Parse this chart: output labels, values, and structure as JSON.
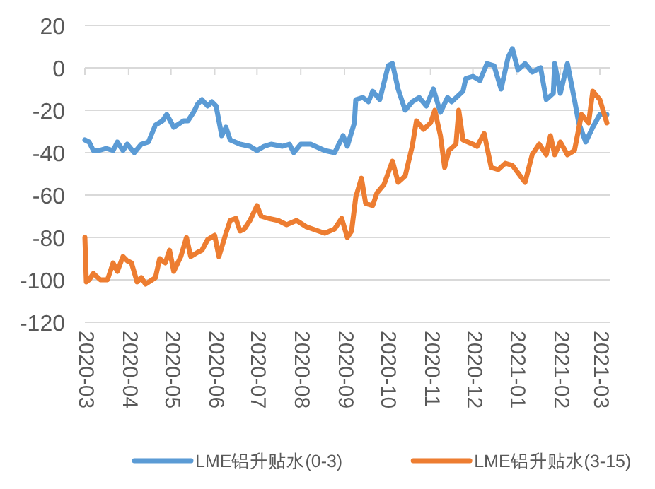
{
  "chart_data": {
    "type": "line",
    "xlim": [
      "2020-03-01",
      "2021-03-08"
    ],
    "xticks": [
      {
        "value": "2020-03-01",
        "label": "2020-03"
      },
      {
        "value": "2020-04-01",
        "label": "2020-04"
      },
      {
        "value": "2020-05-01",
        "label": "2020-05"
      },
      {
        "value": "2020-06-01",
        "label": "2020-06"
      },
      {
        "value": "2020-07-01",
        "label": "2020-07"
      },
      {
        "value": "2020-08-01",
        "label": "2020-08"
      },
      {
        "value": "2020-09-01",
        "label": "2020-09"
      },
      {
        "value": "2020-10-01",
        "label": "2020-10"
      },
      {
        "value": "2020-11-01",
        "label": "2020-11"
      },
      {
        "value": "2020-12-01",
        "label": "2020-12"
      },
      {
        "value": "2021-01-01",
        "label": "2021-01"
      },
      {
        "value": "2021-02-01",
        "label": "2021-02"
      },
      {
        "value": "2021-03-01",
        "label": "2021-03"
      }
    ],
    "ylim": [
      -120,
      20
    ],
    "yticks": [
      -120,
      -100,
      -80,
      -60,
      -40,
      -20,
      0,
      20
    ],
    "grid": "y",
    "legend": "bottom",
    "marker": "none",
    "line_style": "solid",
    "series": [
      {
        "name": "LME铝升贴水(0-3)",
        "color": "#5b9bd5",
        "x": [
          "2020-03-01",
          "2020-03-04",
          "2020-03-07",
          "2020-03-11",
          "2020-03-16",
          "2020-03-21",
          "2020-03-24",
          "2020-03-28",
          "2020-03-31",
          "2020-04-05",
          "2020-04-10",
          "2020-04-15",
          "2020-04-20",
          "2020-04-25",
          "2020-04-28",
          "2020-05-03",
          "2020-05-10",
          "2020-05-13",
          "2020-05-17",
          "2020-05-20",
          "2020-05-23",
          "2020-05-27",
          "2020-05-30",
          "2020-06-02",
          "2020-06-06",
          "2020-06-09",
          "2020-06-12",
          "2020-06-19",
          "2020-06-26",
          "2020-07-01",
          "2020-07-06",
          "2020-07-11",
          "2020-07-19",
          "2020-07-24",
          "2020-07-27",
          "2020-08-01",
          "2020-08-08",
          "2020-08-18",
          "2020-08-25",
          "2020-08-31",
          "2020-09-03",
          "2020-09-08",
          "2020-09-09",
          "2020-09-14",
          "2020-09-18",
          "2020-09-21",
          "2020-09-26",
          "2020-10-02",
          "2020-10-05",
          "2020-10-09",
          "2020-10-14",
          "2020-10-19",
          "2020-10-24",
          "2020-10-29",
          "2020-11-03",
          "2020-11-08",
          "2020-11-13",
          "2020-11-16",
          "2020-11-24",
          "2020-11-26",
          "2020-12-01",
          "2020-12-06",
          "2020-12-11",
          "2020-12-16",
          "2020-12-21",
          "2020-12-26",
          "2020-12-29",
          "2021-01-02",
          "2021-01-07",
          "2021-01-12",
          "2021-01-18",
          "2021-01-22",
          "2021-01-27",
          "2021-01-28",
          "2021-02-01",
          "2021-02-06",
          "2021-02-11",
          "2021-02-14",
          "2021-02-19",
          "2021-02-24",
          "2021-03-01",
          "2021-03-06"
        ],
        "values": [
          -34,
          -35,
          -39,
          -39,
          -38,
          -39,
          -35,
          -39,
          -36,
          -40,
          -36,
          -35,
          -27,
          -25,
          -22,
          -28,
          -25,
          -25,
          -21,
          -17,
          -15,
          -18,
          -16,
          -18,
          -32,
          -28,
          -34,
          -36,
          -37,
          -39,
          -37,
          -36,
          -37,
          -36,
          -40,
          -36,
          -36,
          -39,
          -40,
          -32,
          -37,
          -26,
          -15,
          -14,
          -16,
          -11,
          -15,
          1,
          2,
          -10,
          -20,
          -16,
          -14,
          -18,
          -10,
          -21,
          -14,
          -16,
          -11,
          -5,
          -4,
          -6,
          2,
          1,
          -10,
          5,
          9,
          -1,
          2,
          -2,
          0,
          -15,
          -12,
          2,
          -12,
          2,
          -15,
          -26,
          -35,
          -28,
          -22,
          -22
        ]
      },
      {
        "name": "LME铝升贴水(3-15)",
        "color": "#ed7d31",
        "x": [
          "2020-03-01",
          "2020-03-02",
          "2020-03-04",
          "2020-03-07",
          "2020-03-12",
          "2020-03-17",
          "2020-03-21",
          "2020-03-24",
          "2020-03-28",
          "2020-03-31",
          "2020-04-03",
          "2020-04-07",
          "2020-04-10",
          "2020-04-13",
          "2020-04-20",
          "2020-04-23",
          "2020-04-27",
          "2020-04-30",
          "2020-05-03",
          "2020-05-08",
          "2020-05-12",
          "2020-05-15",
          "2020-05-20",
          "2020-05-23",
          "2020-05-27",
          "2020-06-01",
          "2020-06-04",
          "2020-06-09",
          "2020-06-12",
          "2020-06-16",
          "2020-06-19",
          "2020-06-22",
          "2020-06-26",
          "2020-07-01",
          "2020-07-04",
          "2020-07-09",
          "2020-07-16",
          "2020-07-22",
          "2020-07-29",
          "2020-08-05",
          "2020-08-18",
          "2020-08-25",
          "2020-08-30",
          "2020-09-03",
          "2020-09-06",
          "2020-09-09",
          "2020-09-13",
          "2020-09-16",
          "2020-09-21",
          "2020-09-24",
          "2020-09-29",
          "2020-10-05",
          "2020-10-09",
          "2020-10-14",
          "2020-10-19",
          "2020-10-22",
          "2020-10-27",
          "2020-11-01",
          "2020-11-04",
          "2020-11-08",
          "2020-11-11",
          "2020-11-14",
          "2020-11-19",
          "2020-11-21",
          "2020-11-24",
          "2020-12-01",
          "2020-12-04",
          "2020-12-09",
          "2020-12-14",
          "2020-12-19",
          "2020-12-24",
          "2020-12-29",
          "2021-01-07",
          "2021-01-12",
          "2021-01-17",
          "2021-01-22",
          "2021-01-25",
          "2021-01-28",
          "2021-02-01",
          "2021-02-06",
          "2021-02-11",
          "2021-02-16",
          "2021-02-21",
          "2021-02-24",
          "2021-03-01",
          "2021-03-06"
        ],
        "values": [
          -80,
          -101,
          -100,
          -97,
          -100,
          -100,
          -92,
          -96,
          -89,
          -91,
          -92,
          -101,
          -99,
          -102,
          -99,
          -90,
          -92,
          -86,
          -96,
          -89,
          -80,
          -89,
          -87,
          -86,
          -81,
          -79,
          -89,
          -78,
          -72,
          -71,
          -77,
          -76,
          -72,
          -65,
          -70,
          -71,
          -72,
          -74,
          -72,
          -75,
          -78,
          -76,
          -71,
          -80,
          -77,
          -61,
          -52,
          -64,
          -65,
          -59,
          -55,
          -44,
          -54,
          -51,
          -37,
          -25,
          -29,
          -26,
          -20,
          -32,
          -47,
          -39,
          -36,
          -20,
          -34,
          -36,
          -37,
          -31,
          -47,
          -48,
          -45,
          -46,
          -54,
          -41,
          -36,
          -41,
          -32,
          -41,
          -35,
          -41,
          -39,
          -22,
          -26,
          -11,
          -15,
          -26
        ]
      }
    ]
  }
}
